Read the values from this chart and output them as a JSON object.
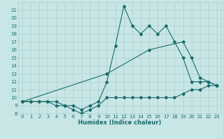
{
  "title": "",
  "xlabel": "Humidex (Indice chaleur)",
  "xlim": [
    -0.5,
    23.5
  ],
  "ylim": [
    8,
    22
  ],
  "yticks": [
    8,
    9,
    10,
    11,
    12,
    13,
    14,
    15,
    16,
    17,
    18,
    19,
    20,
    21
  ],
  "xticks": [
    0,
    1,
    2,
    3,
    4,
    5,
    6,
    7,
    8,
    9,
    10,
    11,
    12,
    13,
    14,
    15,
    16,
    17,
    18,
    19,
    20,
    21,
    22,
    23
  ],
  "bg_color": "#c8e6e6",
  "grid_color": "#aacfcf",
  "line_color": "#1a6b6b",
  "line1_x": [
    0,
    1,
    2,
    3,
    4,
    5,
    6,
    7,
    8,
    9,
    10,
    11,
    12,
    13,
    14,
    15,
    16,
    17,
    18,
    19,
    20,
    21,
    22,
    23
  ],
  "line1_y": [
    9.5,
    9.5,
    9.5,
    9.5,
    9.5,
    9.0,
    8.5,
    8.0,
    8.5,
    9.0,
    10.0,
    10.0,
    10.0,
    10.0,
    10.0,
    10.0,
    10.0,
    10.0,
    10.0,
    10.5,
    11.0,
    11.0,
    11.5,
    11.5
  ],
  "line2_x": [
    0,
    1,
    2,
    3,
    4,
    5,
    6,
    7,
    8,
    9,
    10,
    11,
    12,
    13,
    14,
    15,
    16,
    17,
    18,
    19,
    20,
    21,
    22,
    23
  ],
  "line2_y": [
    9.5,
    9.5,
    9.5,
    9.5,
    9.0,
    9.0,
    9.0,
    8.5,
    9.0,
    9.5,
    12.0,
    16.5,
    21.5,
    19.0,
    18.0,
    19.0,
    18.0,
    19.0,
    17.0,
    15.0,
    12.0,
    12.0,
    12.0,
    11.5
  ],
  "line3_x": [
    0,
    10,
    15,
    19,
    20,
    21,
    22,
    23
  ],
  "line3_y": [
    9.5,
    13.0,
    16.0,
    17.0,
    15.0,
    12.5,
    12.0,
    11.5
  ],
  "marker": "D",
  "markersize": 2.0,
  "linewidth": 0.8
}
